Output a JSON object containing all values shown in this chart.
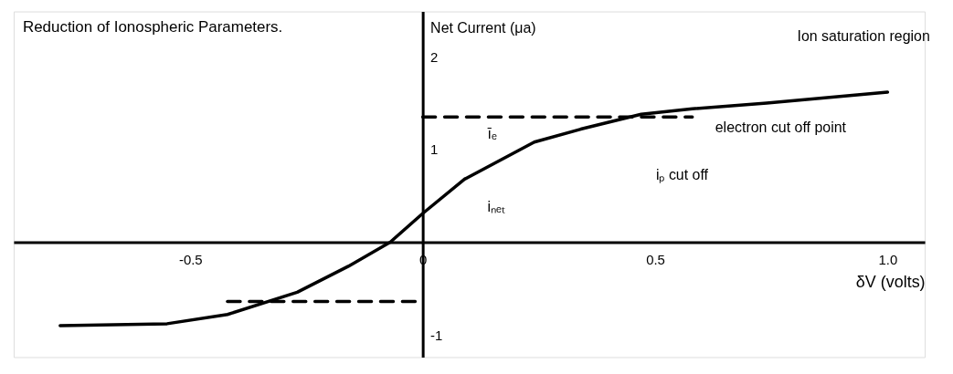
{
  "chart_data": {
    "type": "line",
    "title": "Reduction of Ionospheric Parameters.",
    "xlabel": "δV (volts)",
    "ylabel": "Net Current (μa)",
    "xlim": [
      -0.88,
      1.08
    ],
    "ylim": [
      -1.24,
      2.49
    ],
    "xticks": [
      -0.5,
      0,
      0.5,
      {
        "value": 1,
        "label": "1.0"
      }
    ],
    "yticks": [
      -1,
      1,
      2
    ],
    "series": [
      {
        "color": "#000000",
        "line_style": "solid",
        "x": [
          -0.78,
          -0.55,
          -0.42,
          -0.27,
          -0.16,
          -0.07,
          0,
          0.09,
          0.24,
          0.34,
          0.47,
          0.58,
          0.74,
          1.0
        ],
        "values": [
          -0.9,
          -0.88,
          -0.78,
          -0.54,
          -0.26,
          0,
          0.31,
          0.68,
          1.08,
          1.22,
          1.38,
          1.44,
          1.5,
          1.62
        ]
      },
      {
        "color": "#000000",
        "line_style": "dashed",
        "x": [
          0,
          0.58
        ],
        "values": [
          1.35,
          1.35
        ]
      },
      {
        "color": "#000000",
        "line_style": "dashed",
        "x": [
          -0.42,
          0
        ],
        "values": [
          -0.64,
          -0.64
        ]
      }
    ],
    "annotations": [
      "Ion saturation region",
      "electron cut off point",
      "iₚ cut off",
      "īₑ",
      "iₙₑₜ"
    ],
    "grid": false
  }
}
